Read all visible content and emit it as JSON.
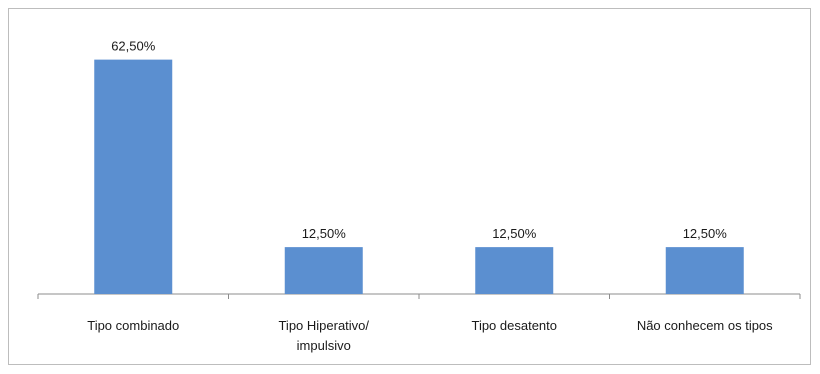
{
  "chart_data": {
    "type": "bar",
    "categories": [
      [
        "Tipo combinado"
      ],
      [
        "Tipo Hiperativo/",
        "impulsivo"
      ],
      [
        "Tipo desatento"
      ],
      [
        "Não conhecem os tipos"
      ]
    ],
    "values": [
      62.5,
      12.5,
      12.5,
      12.5
    ],
    "data_labels": [
      "62,50%",
      "12,50%",
      "12,50%",
      "12,50%"
    ],
    "ylim": [
      0,
      70
    ],
    "grid": false,
    "legend": "none",
    "colors": {
      "bar": "#5b8fd0",
      "axis": "#8c8c8c",
      "text": "#1a1a1a"
    }
  }
}
